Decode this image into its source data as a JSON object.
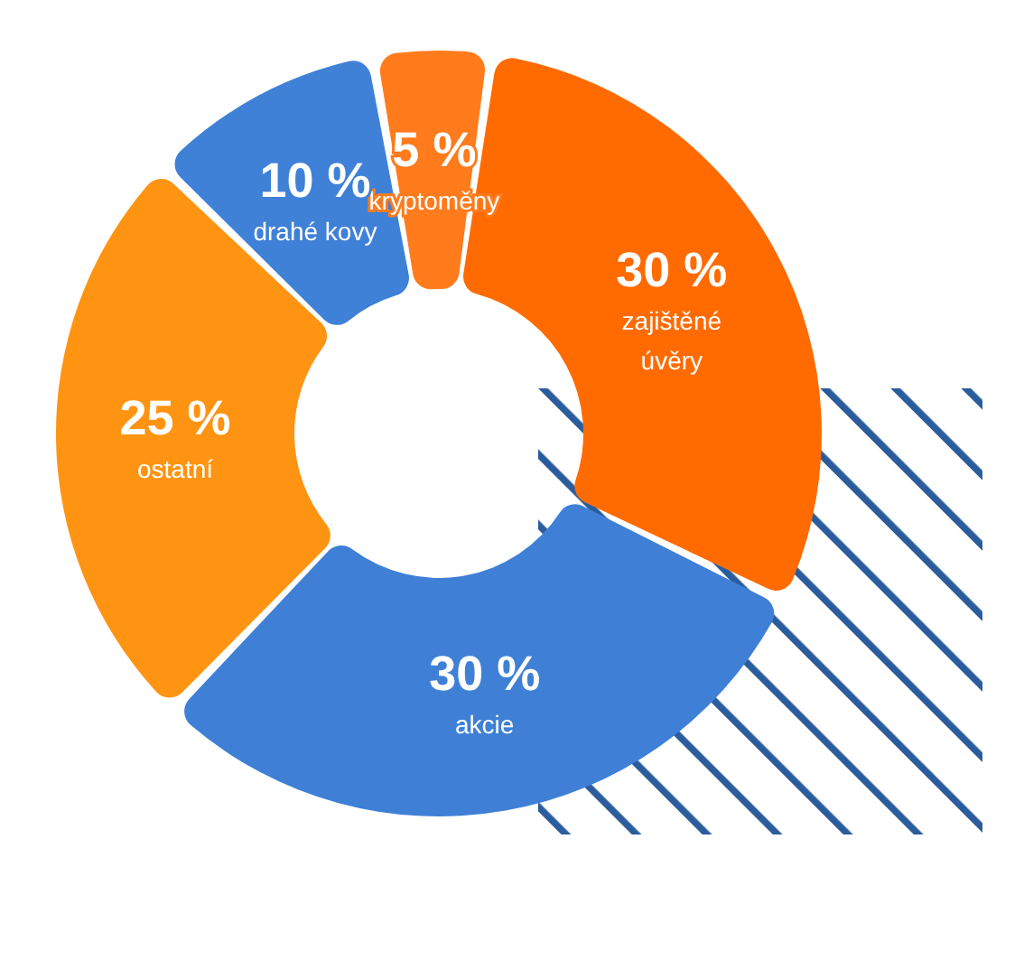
{
  "chart_data": {
    "type": "donut",
    "categories": [
      "kryptoměny",
      "zajištěné úvěry",
      "akcie",
      "ostatní",
      "drahé kovy"
    ],
    "values": [
      5,
      30,
      30,
      25,
      10
    ],
    "value_labels": [
      "5 %",
      "30 %",
      "30 %",
      "25 %",
      "10 %"
    ],
    "colors": [
      "#ff7b1c",
      "#ff6b00",
      "#3f80d6",
      "#ff9412",
      "#3f81d7"
    ]
  }
}
